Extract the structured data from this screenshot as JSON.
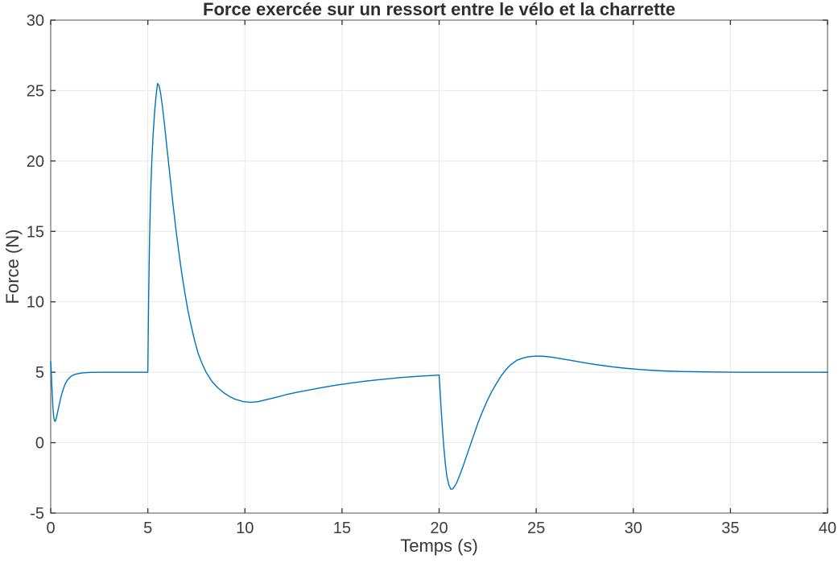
{
  "chart_data": {
    "type": "line",
    "title": "Force exercée sur un ressort entre le vélo et la charrette",
    "xlabel": "Temps (s)",
    "ylabel": "Force (N)",
    "xlim": [
      0,
      40
    ],
    "ylim": [
      -5,
      30
    ],
    "x_ticks": [
      0,
      5,
      10,
      15,
      20,
      25,
      30,
      35,
      40
    ],
    "y_ticks": [
      -5,
      0,
      5,
      10,
      15,
      20,
      25,
      30
    ],
    "grid": true,
    "legend_position": "none",
    "colors": {
      "line": "#0072BD",
      "grid": "#e7e7e7",
      "box": "#8a8a8a",
      "tick": "#3c3c3c",
      "tick_label": "#3c3c3c",
      "background": "#ffffff"
    },
    "series": [
      {
        "x": [
          0,
          0.02,
          0.05,
          0.08,
          0.11,
          0.14,
          0.17,
          0.21,
          0.25,
          0.3,
          0.36,
          0.43,
          0.5,
          0.58,
          0.66,
          0.75,
          0.85,
          0.95,
          1.1,
          1.25,
          1.4,
          1.6,
          1.8,
          2.1,
          2.5,
          3,
          3.5,
          4,
          4.5,
          5,
          5.02,
          5.05,
          5.09,
          5.14,
          5.2,
          5.27,
          5.35,
          5.43,
          5.5,
          5.58,
          5.66,
          5.75,
          5.85,
          5.95,
          6.05,
          6.15,
          6.3,
          6.45,
          6.6,
          6.75,
          6.9,
          7.05,
          7.2,
          7.4,
          7.6,
          7.8,
          8.0,
          8.3,
          8.6,
          8.9,
          9.2,
          9.5,
          9.9,
          10.3,
          10.7,
          11.1,
          11.6,
          12.1,
          12.7,
          13.3,
          14,
          14.7,
          15.5,
          16.3,
          17.1,
          18,
          19,
          20,
          20.04,
          20.1,
          20.16,
          20.24,
          20.32,
          20.4,
          20.5,
          20.6,
          20.7,
          20.8,
          20.92,
          21.05,
          21.2,
          21.4,
          21.6,
          21.8,
          22.0,
          22.2,
          22.45,
          22.7,
          22.95,
          23.2,
          23.45,
          23.7,
          24.0,
          24.3,
          24.6,
          25.0,
          25.4,
          25.8,
          26.2,
          26.7,
          27.2,
          27.8,
          28.4,
          29,
          29.6,
          30.3,
          31,
          31.8,
          32.6,
          33.5,
          34.5,
          35.5,
          36.5,
          38,
          40
        ],
        "y": [
          5.75,
          5.3,
          4.3,
          3.4,
          2.6,
          2.05,
          1.7,
          1.52,
          1.55,
          1.8,
          2.2,
          2.65,
          3.08,
          3.5,
          3.85,
          4.18,
          4.42,
          4.6,
          4.76,
          4.85,
          4.9,
          4.95,
          4.97,
          4.99,
          5,
          5,
          5,
          5,
          5,
          5,
          7.5,
          11,
          14.5,
          17.5,
          19.8,
          21.8,
          23.5,
          24.7,
          25.5,
          25.35,
          24.8,
          23.9,
          22.7,
          21.4,
          20.1,
          18.8,
          16.9,
          15.1,
          13.5,
          12.0,
          10.7,
          9.5,
          8.5,
          7.3,
          6.3,
          5.6,
          5.0,
          4.35,
          3.9,
          3.55,
          3.28,
          3.08,
          2.92,
          2.86,
          2.92,
          3.05,
          3.22,
          3.4,
          3.58,
          3.74,
          3.92,
          4.08,
          4.24,
          4.38,
          4.5,
          4.62,
          4.72,
          4.8,
          3.9,
          2.5,
          1.2,
          -0.3,
          -1.5,
          -2.4,
          -3.0,
          -3.3,
          -3.28,
          -3.1,
          -2.8,
          -2.35,
          -1.8,
          -1.0,
          -0.2,
          0.6,
          1.4,
          2.1,
          2.9,
          3.6,
          4.2,
          4.75,
          5.2,
          5.55,
          5.85,
          6.0,
          6.1,
          6.15,
          6.13,
          6.07,
          5.98,
          5.86,
          5.74,
          5.6,
          5.48,
          5.37,
          5.28,
          5.2,
          5.13,
          5.08,
          5.05,
          5.03,
          5.01,
          5.0,
          5.0,
          5.0,
          5.0
        ]
      }
    ]
  }
}
